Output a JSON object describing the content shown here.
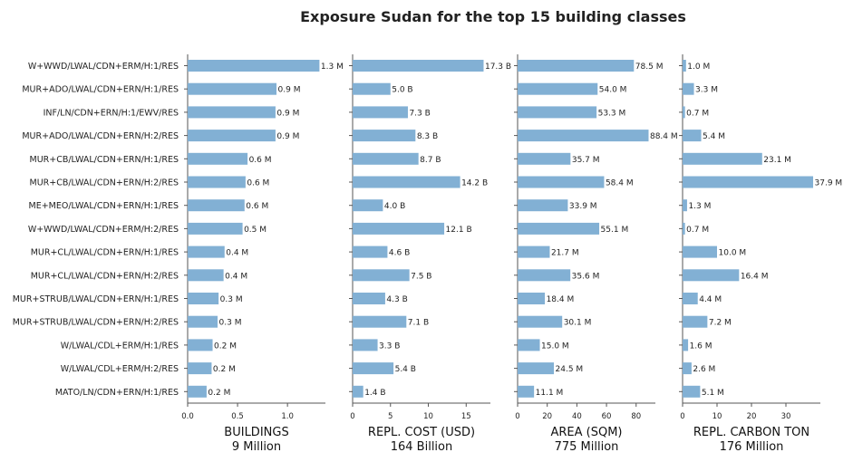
{
  "title": "Exposure Sudan for the top 15 building classes",
  "chart_data": {
    "type": "bar",
    "orientation": "horizontal",
    "title": "Exposure Sudan for the top 15 building classes",
    "categories": [
      "W+WWD/LWAL/CDN+ERM/H:1/RES",
      "MUR+ADO/LWAL/CDN+ERN/H:1/RES",
      "INF/LN/CDN+ERN/H:1/EWV/RES",
      "MUR+ADO/LWAL/CDN+ERN/H:2/RES",
      "MUR+CB/LWAL/CDN+ERN/H:1/RES",
      "MUR+CB/LWAL/CDN+ERN/H:2/RES",
      "ME+MEO/LWAL/CDN+ERN/H:1/RES",
      "W+WWD/LWAL/CDN+ERM/H:2/RES",
      "MUR+CL/LWAL/CDN+ERN/H:1/RES",
      "MUR+CL/LWAL/CDN+ERN/H:2/RES",
      "MUR+STRUB/LWAL/CDN+ERN/H:1/RES",
      "MUR+STRUB/LWAL/CDN+ERN/H:2/RES",
      "W/LWAL/CDL+ERM/H:1/RES",
      "W/LWAL/CDL+ERM/H:2/RES",
      "MATO/LN/CDN+ERN/H:1/RES"
    ],
    "panels": [
      {
        "xlabel": "BUILDINGS",
        "total": "9 Million",
        "xlim": [
          0,
          1.38
        ],
        "ticks": [
          0,
          0.5,
          1
        ],
        "tick_labels": [
          "0.0",
          "0.5",
          "1.0"
        ],
        "values": [
          1.3,
          0.9,
          0.9,
          0.9,
          0.6,
          0.6,
          0.6,
          0.5,
          0.4,
          0.4,
          0.3,
          0.3,
          0.2,
          0.2,
          0.2
        ],
        "display_values": [
          1.32,
          0.89,
          0.88,
          0.88,
          0.6,
          0.58,
          0.57,
          0.55,
          0.37,
          0.36,
          0.31,
          0.3,
          0.25,
          0.24,
          0.19
        ],
        "labels": [
          "1.3 M",
          "0.9 M",
          "0.9 M",
          "0.9 M",
          "0.6 M",
          "0.6 M",
          "0.6 M",
          "0.5 M",
          "0.4 M",
          "0.4 M",
          "0.3 M",
          "0.3 M",
          "0.2 M",
          "0.2 M",
          "0.2 M"
        ]
      },
      {
        "xlabel": "REPL. COST (USD)",
        "total": "164 Billion",
        "xlim": [
          0,
          18.2
        ],
        "ticks": [
          0,
          5,
          10,
          15
        ],
        "tick_labels": [
          "0",
          "5",
          "10",
          "15"
        ],
        "values": [
          17.3,
          5.0,
          7.3,
          8.3,
          8.7,
          14.2,
          4.0,
          12.1,
          4.6,
          7.5,
          4.3,
          7.1,
          3.3,
          5.4,
          1.4
        ],
        "labels": [
          "17.3 B",
          "5.0 B",
          "7.3 B",
          "8.3 B",
          "8.7 B",
          "14.2 B",
          "4.0 B",
          "12.1 B",
          "4.6 B",
          "7.5 B",
          "4.3 B",
          "7.1 B",
          "3.3 B",
          "5.4 B",
          "1.4 B"
        ]
      },
      {
        "xlabel": "AREA (SQM)",
        "total": "775 Million",
        "xlim": [
          0,
          93
        ],
        "ticks": [
          0,
          20,
          40,
          60,
          80
        ],
        "tick_labels": [
          "0",
          "20",
          "40",
          "60",
          "80"
        ],
        "values": [
          78.5,
          54.0,
          53.3,
          88.4,
          35.7,
          58.4,
          33.9,
          55.1,
          21.7,
          35.6,
          18.4,
          30.1,
          15.0,
          24.5,
          11.1
        ],
        "labels": [
          "78.5 M",
          "54.0 M",
          "53.3 M",
          "88.4 M",
          "35.7 M",
          "58.4 M",
          "33.9 M",
          "55.1 M",
          "21.7 M",
          "35.6 M",
          "18.4 M",
          "30.1 M",
          "15.0 M",
          "24.5 M",
          "11.1 M"
        ]
      },
      {
        "xlabel": "REPL. CARBON TON",
        "total": "176 Million",
        "xlim": [
          0,
          40
        ],
        "ticks": [
          0,
          10,
          20,
          30
        ],
        "tick_labels": [
          "0",
          "10",
          "20",
          "30"
        ],
        "values": [
          1.0,
          3.3,
          0.7,
          5.4,
          23.1,
          37.9,
          1.3,
          0.7,
          10.0,
          16.4,
          4.4,
          7.2,
          1.6,
          2.6,
          5.1
        ],
        "labels": [
          "1.0 M",
          "3.3 M",
          "0.7 M",
          "5.4 M",
          "23.1 M",
          "37.9 M",
          "1.3 M",
          "0.7 M",
          "10.0 M",
          "16.4 M",
          "4.4 M",
          "7.2 M",
          "1.6 M",
          "2.6 M",
          "5.1 M"
        ]
      }
    ],
    "bar_color": "#82b0d4",
    "grid": false,
    "legend": "none"
  }
}
